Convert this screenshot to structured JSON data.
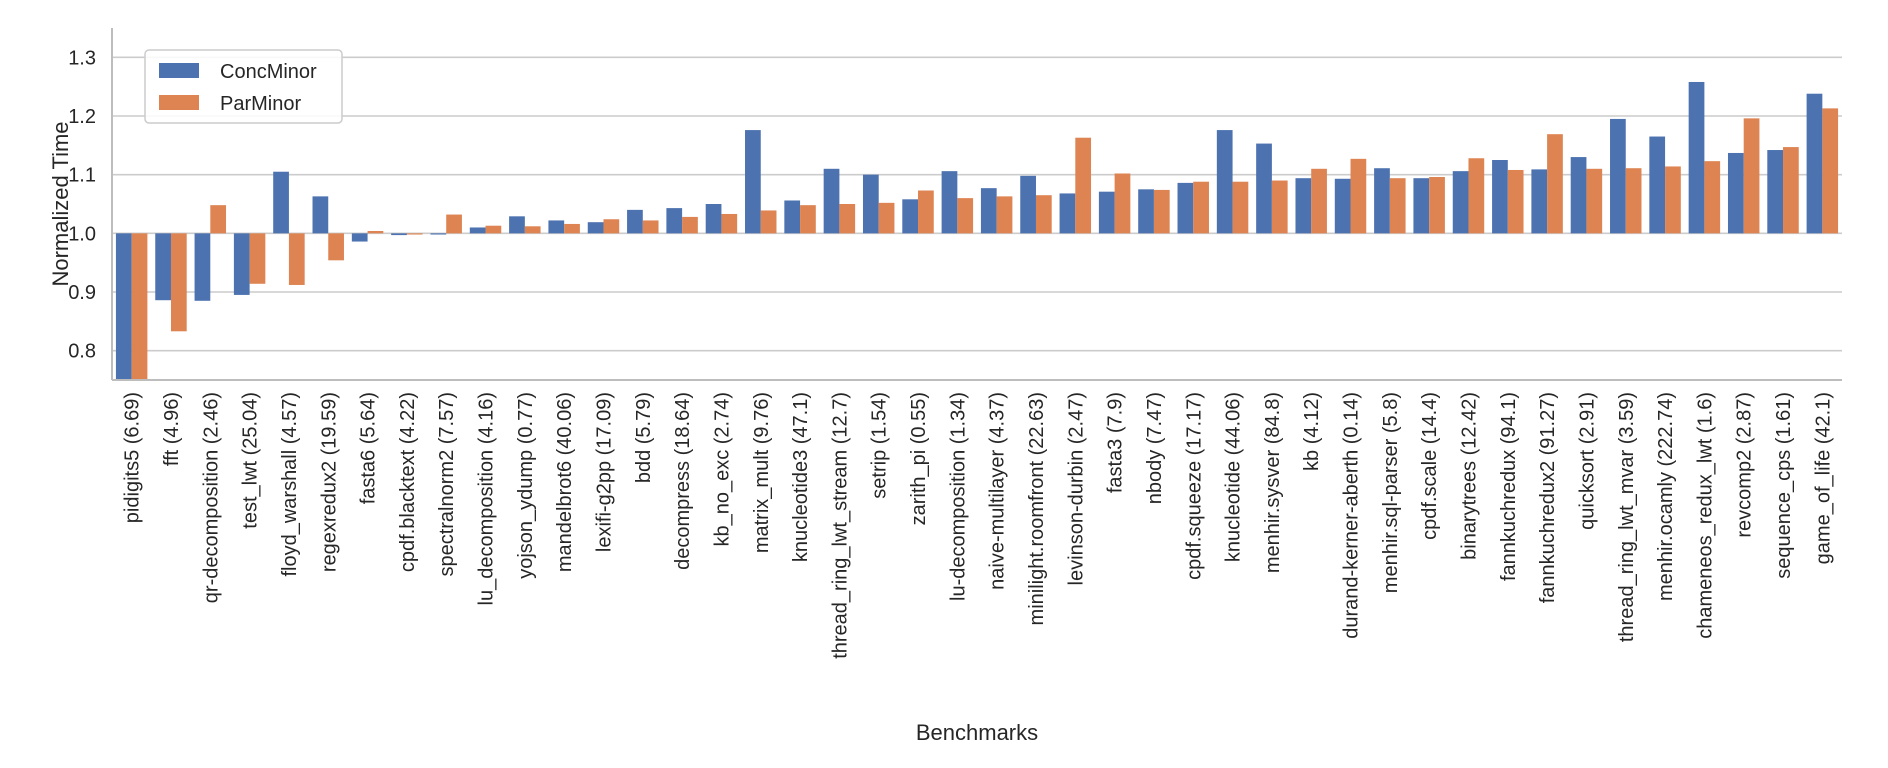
{
  "chart_data": {
    "type": "bar",
    "xlabel": "Benchmarks",
    "ylabel": "Normalized Time",
    "ylim": [
      0.75,
      1.35
    ],
    "yticks": [
      "0.8",
      "0.9",
      "1.0",
      "1.1",
      "1.2",
      "1.3"
    ],
    "grid": true,
    "legend_position": "top-left",
    "categories": [
      "pidigits5 (6.69)",
      "fft (4.96)",
      "qr-decomposition (2.46)",
      "test_lwt (25.04)",
      "floyd_warshall (4.57)",
      "regexredux2 (19.59)",
      "fasta6 (5.64)",
      "cpdf.blacktext (4.22)",
      "spectralnorm2 (7.57)",
      "lu_decomposition (4.16)",
      "yojson_ydump (0.77)",
      "mandelbrot6 (40.06)",
      "lexifi-g2pp (17.09)",
      "bdd (5.79)",
      "decompress (18.64)",
      "kb_no_exc (2.74)",
      "matrix_mult (9.76)",
      "knucleotide3 (47.1)",
      "thread_ring_lwt_stream (12.7)",
      "setrip (1.54)",
      "zarith_pi (0.55)",
      "lu-decomposition (1.34)",
      "naive-multilayer (4.37)",
      "minilight.roomfront (22.63)",
      "levinson-durbin (2.47)",
      "fasta3 (7.9)",
      "nbody (7.47)",
      "cpdf.squeeze (17.17)",
      "knucleotide (44.06)",
      "menhir.sysver (84.8)",
      "kb (4.12)",
      "durand-kerner-aberth (0.14)",
      "menhir.sql-parser (5.8)",
      "cpdf.scale (14.4)",
      "binarytrees (12.42)",
      "fannkuchredux (94.1)",
      "fannkuchredux2 (91.27)",
      "quicksort (2.91)",
      "thread_ring_lwt_mvar (3.59)",
      "menhir.ocamly (222.74)",
      "chameneos_redux_lwt (1.6)",
      "revcomp2 (2.87)",
      "sequence_cps (1.61)",
      "game_of_life (42.1)"
    ],
    "series": [
      {
        "name": "ConcMinor",
        "color": "#4c72b0",
        "values": [
          0.75,
          0.886,
          0.885,
          0.895,
          1.105,
          1.063,
          0.986,
          0.997,
          1.0,
          1.01,
          1.029,
          1.022,
          1.019,
          1.04,
          1.043,
          1.05,
          1.176,
          1.056,
          1.11,
          1.1,
          1.058,
          1.106,
          1.077,
          1.098,
          1.068,
          1.071,
          1.075,
          1.086,
          1.176,
          1.153,
          1.094,
          1.093,
          1.111,
          1.094,
          1.106,
          1.125,
          1.109,
          1.13,
          1.195,
          1.165,
          1.258,
          1.137,
          1.142,
          1.238
        ]
      },
      {
        "name": "ParMinor",
        "color": "#dd8452",
        "values": [
          0.75,
          0.833,
          1.048,
          0.914,
          0.912,
          0.954,
          1.004,
          1.0,
          1.032,
          1.013,
          1.012,
          1.016,
          1.024,
          1.022,
          1.028,
          1.033,
          1.039,
          1.048,
          1.05,
          1.052,
          1.073,
          1.06,
          1.063,
          1.065,
          1.163,
          1.102,
          1.074,
          1.088,
          1.088,
          1.09,
          1.11,
          1.127,
          1.094,
          1.096,
          1.128,
          1.108,
          1.169,
          1.11,
          1.111,
          1.114,
          1.123,
          1.196,
          1.147,
          1.213
        ]
      }
    ]
  }
}
